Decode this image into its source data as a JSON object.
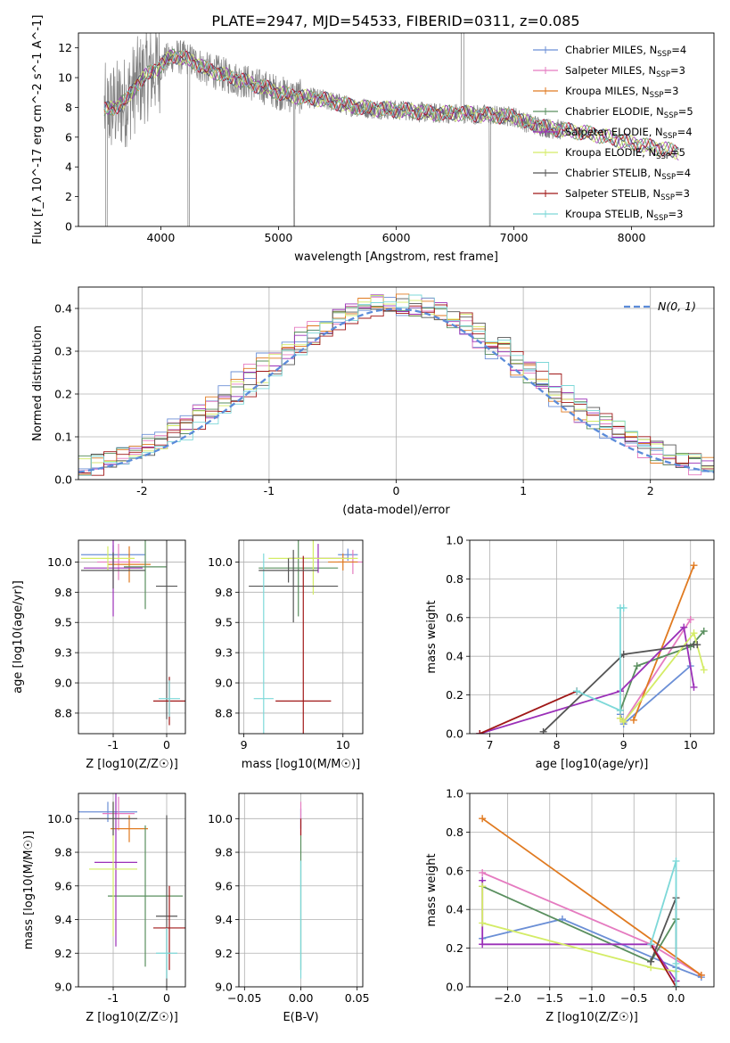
{
  "figure": {
    "title": "PLATE=2947, MJD=54533, FIBERID=0311, z=0.085"
  },
  "colors": {
    "model": [
      "#6b8fd6",
      "#e57bc0",
      "#e07a20",
      "#5a8f5f",
      "#9b30b8",
      "#d4ec66",
      "#555555",
      "#a01818",
      "#7dd8d8"
    ],
    "data": "#808080",
    "gaussian": "#5b8bd9",
    "grid": "#b0b0b0"
  },
  "chart_data": [
    {
      "id": "spectrum",
      "type": "line",
      "title": "PLATE=2947, MJD=54533, FIBERID=0311, z=0.085",
      "xlabel": "wavelength [Angstrom, rest frame]",
      "ylabel": "Flux [f_λ 10^-17 erg cm^-2 s^-1 A^-1]",
      "xlim": [
        3300,
        8700
      ],
      "ylim": [
        0,
        13
      ],
      "xticks": [
        4000,
        5000,
        6000,
        7000,
        8000
      ],
      "yticks": [
        0,
        2,
        4,
        6,
        8,
        10,
        12
      ],
      "grid": false,
      "legend_position": "top-right",
      "legend": [
        {
          "name": "Chabrier MILES",
          "nssp": "4"
        },
        {
          "name": "Salpeter MILES",
          "nssp": "3"
        },
        {
          "name": "Kroupa MILES",
          "nssp": "3"
        },
        {
          "name": "Chabrier ELODIE",
          "nssp": "5"
        },
        {
          "name": "Salpeter ELODIE",
          "nssp": "4"
        },
        {
          "name": "Kroupa ELODIE",
          "nssp": "5"
        },
        {
          "name": "Chabrier STELIB",
          "nssp": "4"
        },
        {
          "name": "Salpeter STELIB",
          "nssp": "3"
        },
        {
          "name": "Kroupa STELIB",
          "nssp": "3"
        }
      ],
      "continuum": {
        "x": [
          3520,
          3600,
          3700,
          3800,
          3900,
          4000,
          4100,
          4200,
          4300,
          4400,
          4500,
          4600,
          4700,
          4800,
          4900,
          5000,
          5100,
          5200,
          5300,
          5400,
          5500,
          5600,
          5700,
          5800,
          5900,
          6000,
          6100,
          6200,
          6300,
          6400,
          6500,
          6600,
          6700,
          6800,
          6900,
          7000,
          7100,
          7200,
          7300,
          7400,
          7600,
          7800,
          8000,
          8200,
          8400
        ],
        "y": [
          7.8,
          8.0,
          8.4,
          9.6,
          10.3,
          10.8,
          11.5,
          11.3,
          11.0,
          10.5,
          10.3,
          10.0,
          9.8,
          9.5,
          9.3,
          9.0,
          8.8,
          8.7,
          8.6,
          8.5,
          8.3,
          8.1,
          8.0,
          7.9,
          7.9,
          7.8,
          7.8,
          7.7,
          7.6,
          7.6,
          7.6,
          7.6,
          7.5,
          7.5,
          7.4,
          7.4,
          7.0,
          6.8,
          6.6,
          6.5,
          6.3,
          6.0,
          5.6,
          5.3,
          5.0
        ]
      },
      "data_range": [
        3520,
        7420
      ]
    },
    {
      "id": "residuals",
      "type": "line",
      "title": "",
      "xlabel": "(data-model)/error",
      "ylabel": "Normed distribution",
      "xlim": [
        -2.5,
        2.5
      ],
      "ylim": [
        0,
        0.45
      ],
      "xticks": [
        -2,
        -1,
        0,
        1,
        2
      ],
      "yticks": [
        0.0,
        0.1,
        0.2,
        0.3,
        0.4
      ],
      "grid": true,
      "legend_position": "top-right",
      "gaussian_label": "N(0, 1)",
      "bin_width": 0.1
    },
    {
      "id": "age_vs_z",
      "type": "scatter",
      "xlabel": "Z [log10(Z/Z☉)]",
      "ylabel": "age [log10(age/yr)]",
      "xlim": [
        -1.65,
        0.35
      ],
      "ylim": [
        8.58,
        10.18
      ],
      "xticks": [
        -1,
        0
      ],
      "yticks": [
        8.75,
        9.0,
        9.25,
        9.5,
        9.75,
        10.0
      ],
      "grid": true,
      "points": [
        {
          "model": 0,
          "x": -1.0,
          "y": 10.06,
          "xerr": 0.6,
          "yerr": 0.08
        },
        {
          "model": 1,
          "x": -0.9,
          "y": 10.0,
          "xerr": 0.4,
          "yerr": 0.15
        },
        {
          "model": 2,
          "x": -0.7,
          "y": 9.98,
          "xerr": 0.4,
          "yerr": 0.15
        },
        {
          "model": 3,
          "x": -0.4,
          "y": 9.96,
          "xerr": 0.4,
          "yerr": 0.35
        },
        {
          "model": 4,
          "x": -1.0,
          "y": 9.95,
          "xerr": 0.55,
          "yerr": 0.4
        },
        {
          "model": 5,
          "x": -1.1,
          "y": 10.03,
          "xerr": 0.5,
          "yerr": 0.1
        },
        {
          "model": 6,
          "x": 0.0,
          "y": 9.8,
          "xerr": 0.2,
          "yerr": 1.1
        },
        {
          "model": 7,
          "x": 0.05,
          "y": 8.85,
          "xerr": 0.3,
          "yerr": 0.2
        },
        {
          "model": 8,
          "x": 0.05,
          "y": 8.87,
          "xerr": 0.2,
          "yerr": 0.15
        },
        {
          "model": 6,
          "x": -1.0,
          "y": 9.93,
          "xerr": 0.6,
          "yerr": 0.15
        }
      ]
    },
    {
      "id": "age_vs_mass",
      "type": "scatter",
      "xlabel": "mass [log10(M/M☉)]",
      "ylabel": "",
      "xlim": [
        8.95,
        10.2
      ],
      "ylim": [
        8.58,
        10.18
      ],
      "xticks": [
        9,
        10
      ],
      "yticks": [
        8.75,
        9.0,
        9.25,
        9.5,
        9.75,
        10.0
      ],
      "grid": true,
      "points": [
        {
          "model": 0,
          "x": 10.05,
          "y": 10.06,
          "xerr": 0.1,
          "yerr": 0.05
        },
        {
          "model": 1,
          "x": 10.1,
          "y": 10.0,
          "xerr": 0.15,
          "yerr": 0.1
        },
        {
          "model": 2,
          "x": 10.0,
          "y": 10.0,
          "xerr": 0.15,
          "yerr": 0.07
        },
        {
          "model": 3,
          "x": 9.55,
          "y": 9.95,
          "xerr": 0.4,
          "yerr": 0.4
        },
        {
          "model": 4,
          "x": 9.75,
          "y": 10.03,
          "xerr": 0.3,
          "yerr": 0.12
        },
        {
          "model": 5,
          "x": 9.7,
          "y": 10.03,
          "xerr": 0.45,
          "yerr": 0.3
        },
        {
          "model": 6,
          "x": 9.5,
          "y": 9.8,
          "xerr": 0.45,
          "yerr": 0.3
        },
        {
          "model": 7,
          "x": 9.6,
          "y": 8.85,
          "xerr": 0.28,
          "yerr": 1.2
        },
        {
          "model": 8,
          "x": 9.2,
          "y": 8.87,
          "xerr": 0.1,
          "yerr": 1.2
        },
        {
          "model": 6,
          "x": 9.45,
          "y": 9.93,
          "xerr": 0.3,
          "yerr": 0.1
        }
      ]
    },
    {
      "id": "weight_vs_age",
      "type": "line",
      "xlabel": "age  [log10(age/yr)]",
      "ylabel": "mass weight",
      "xlim": [
        6.7,
        10.35
      ],
      "ylim": [
        0,
        1.0
      ],
      "xticks": [
        7,
        8,
        9,
        10
      ],
      "yticks": [
        0.0,
        0.2,
        0.4,
        0.6,
        0.8,
        1.0
      ],
      "grid": true,
      "series": [
        {
          "model": 0,
          "x": [
            8.95,
            9.0,
            10.0
          ],
          "y": [
            0.1,
            0.05,
            0.35
          ]
        },
        {
          "model": 1,
          "x": [
            8.95,
            9.0,
            10.0
          ],
          "y": [
            0.08,
            0.06,
            0.59
          ]
        },
        {
          "model": 2,
          "x": [
            9.15,
            10.05
          ],
          "y": [
            0.07,
            0.87
          ]
        },
        {
          "model": 3,
          "x": [
            8.95,
            9.2,
            10.0,
            10.2
          ],
          "y": [
            0.12,
            0.35,
            0.45,
            0.53
          ]
        },
        {
          "model": 4,
          "x": [
            6.85,
            8.95,
            9.9,
            10.05
          ],
          "y": [
            0.0,
            0.22,
            0.55,
            0.24
          ]
        },
        {
          "model": 5,
          "x": [
            8.95,
            9.0,
            10.05,
            10.2
          ],
          "y": [
            0.08,
            0.06,
            0.52,
            0.33
          ]
        },
        {
          "model": 6,
          "x": [
            7.8,
            9.0,
            10.05,
            10.1
          ],
          "y": [
            0.01,
            0.41,
            0.46,
            0.46
          ]
        },
        {
          "model": 7,
          "x": [
            6.85,
            8.3
          ],
          "y": [
            0.0,
            0.22
          ]
        },
        {
          "model": 8,
          "x": [
            8.3,
            8.95,
            8.95,
            9.0
          ],
          "y": [
            0.22,
            0.12,
            0.65,
            0.65
          ]
        }
      ]
    },
    {
      "id": "mass_vs_z",
      "type": "scatter",
      "xlabel": "Z [log10(Z/Z☉)]",
      "ylabel": "mass [log10(M/M☉)]",
      "xlim": [
        -1.65,
        0.35
      ],
      "ylim": [
        9.0,
        10.15
      ],
      "xticks": [
        -1,
        0
      ],
      "yticks": [
        9.0,
        9.2,
        9.4,
        9.6,
        9.8,
        10.0
      ],
      "grid": true,
      "points": [
        {
          "model": 0,
          "x": -1.1,
          "y": 10.04,
          "xerr": 0.55,
          "yerr": 0.06
        },
        {
          "model": 1,
          "x": -0.9,
          "y": 10.03,
          "xerr": 0.3,
          "yerr": 0.1
        },
        {
          "model": 2,
          "x": -0.7,
          "y": 9.94,
          "xerr": 0.35,
          "yerr": 0.08
        },
        {
          "model": 3,
          "x": -0.4,
          "y": 9.54,
          "xerr": 0.7,
          "yerr": 0.42
        },
        {
          "model": 4,
          "x": -0.95,
          "y": 9.74,
          "xerr": 0.4,
          "yerr": 0.5
        },
        {
          "model": 5,
          "x": -1.0,
          "y": 9.7,
          "xerr": 0.45,
          "yerr": 0.4
        },
        {
          "model": 6,
          "x": 0.0,
          "y": 9.42,
          "xerr": 0.2,
          "yerr": 0.6
        },
        {
          "model": 7,
          "x": 0.05,
          "y": 9.35,
          "xerr": 0.3,
          "yerr": 0.25
        },
        {
          "model": 8,
          "x": 0.0,
          "y": 9.2,
          "xerr": 0.2,
          "yerr": 0.15
        },
        {
          "model": 6,
          "x": -1.0,
          "y": 10.0,
          "xerr": 0.45,
          "yerr": 0.1
        }
      ]
    },
    {
      "id": "mass_vs_ebv",
      "type": "scatter",
      "xlabel": "E(B-V)",
      "ylabel": "",
      "xlim": [
        -0.055,
        0.055
      ],
      "ylim": [
        9.0,
        10.15
      ],
      "xticks": [
        -0.05,
        0.0,
        0.05
      ],
      "yticks": [
        9.0,
        9.2,
        9.4,
        9.6,
        9.8,
        10.0
      ],
      "grid": true,
      "points": [
        {
          "model": 0,
          "x": 0.0,
          "y": 10.0,
          "xerr": 0.0,
          "yerr": 0.06
        },
        {
          "model": 1,
          "x": 0.0,
          "y": 10.0,
          "xerr": 0.0,
          "yerr": 0.1
        },
        {
          "model": 3,
          "x": 0.0,
          "y": 9.5,
          "xerr": 0.0,
          "yerr": 0.4
        },
        {
          "model": 8,
          "x": 0.0,
          "y": 9.4,
          "xerr": 0.0,
          "yerr": 0.35
        },
        {
          "model": 7,
          "x": 0.0,
          "y": 9.95,
          "xerr": 0.0,
          "yerr": 0.05
        }
      ]
    },
    {
      "id": "weight_vs_z",
      "type": "line",
      "xlabel": "Z [log10(Z/Z☉)]",
      "ylabel": "mass weight",
      "xlim": [
        -2.45,
        0.45
      ],
      "ylim": [
        0,
        1.0
      ],
      "xticks": [
        -2.0,
        -1.5,
        -1.0,
        -0.5,
        0.0
      ],
      "yticks": [
        0.0,
        0.2,
        0.4,
        0.6,
        0.8,
        1.0
      ],
      "grid": true,
      "series": [
        {
          "model": 0,
          "x": [
            -2.3,
            -1.35,
            0.0,
            0.3
          ],
          "y": [
            0.25,
            0.35,
            0.1,
            0.05
          ]
        },
        {
          "model": 1,
          "x": [
            -2.3,
            -0.3,
            0.3
          ],
          "y": [
            0.59,
            0.22,
            0.06
          ]
        },
        {
          "model": 2,
          "x": [
            -2.3,
            0.3
          ],
          "y": [
            0.87,
            0.06
          ]
        },
        {
          "model": 3,
          "x": [
            -2.3,
            -0.3,
            0.0
          ],
          "y": [
            0.52,
            0.13,
            0.35
          ]
        },
        {
          "model": 4,
          "x": [
            -2.3,
            -2.3,
            -0.3,
            0.0
          ],
          "y": [
            0.55,
            0.22,
            0.22,
            0.03
          ]
        },
        {
          "model": 5,
          "x": [
            -2.3,
            -2.3,
            -0.3,
            0.0
          ],
          "y": [
            0.52,
            0.33,
            0.1,
            0.08
          ]
        },
        {
          "model": 6,
          "x": [
            -0.3,
            0.0,
            0.0
          ],
          "y": [
            0.13,
            0.46,
            0.0
          ]
        },
        {
          "model": 7,
          "x": [
            -0.3,
            0.0
          ],
          "y": [
            0.22,
            0.0
          ]
        },
        {
          "model": 8,
          "x": [
            -0.3,
            0.0,
            0.0,
            0.0
          ],
          "y": [
            0.22,
            0.65,
            0.12,
            0.0
          ]
        }
      ]
    }
  ]
}
